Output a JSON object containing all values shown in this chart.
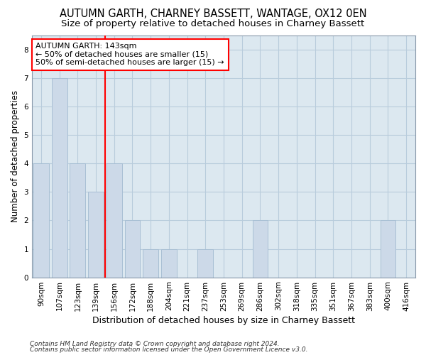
{
  "title1": "AUTUMN GARTH, CHARNEY BASSETT, WANTAGE, OX12 0EN",
  "title2": "Size of property relative to detached houses in Charney Bassett",
  "xlabel": "Distribution of detached houses by size in Charney Bassett",
  "ylabel": "Number of detached properties",
  "categories": [
    "90sqm",
    "107sqm",
    "123sqm",
    "139sqm",
    "156sqm",
    "172sqm",
    "188sqm",
    "204sqm",
    "221sqm",
    "237sqm",
    "253sqm",
    "269sqm",
    "286sqm",
    "302sqm",
    "318sqm",
    "335sqm",
    "351sqm",
    "367sqm",
    "383sqm",
    "400sqm",
    "416sqm"
  ],
  "values": [
    4,
    7,
    4,
    3,
    4,
    2,
    1,
    1,
    0,
    1,
    0,
    0,
    2,
    0,
    0,
    0,
    0,
    0,
    0,
    2,
    0
  ],
  "bar_color": "#ccd9e8",
  "bar_edgecolor": "#a8bfd4",
  "redline_after_index": 3,
  "annotation_line1": "AUTUMN GARTH: 143sqm",
  "annotation_line2": "← 50% of detached houses are smaller (15)",
  "annotation_line3": "50% of semi-detached houses are larger (15) →",
  "ylim": [
    0,
    8.5
  ],
  "yticks": [
    0,
    1,
    2,
    3,
    4,
    5,
    6,
    7,
    8
  ],
  "footnote1": "Contains HM Land Registry data © Crown copyright and database right 2024.",
  "footnote2": "Contains public sector information licensed under the Open Government Licence v3.0.",
  "fig_bg_color": "#ffffff",
  "plot_bg_color": "#dce8f0",
  "grid_color": "#b8ccdc",
  "title1_fontsize": 10.5,
  "title2_fontsize": 9.5,
  "xlabel_fontsize": 9,
  "ylabel_fontsize": 8.5,
  "tick_fontsize": 7.5,
  "annot_fontsize": 8,
  "footnote_fontsize": 6.5
}
